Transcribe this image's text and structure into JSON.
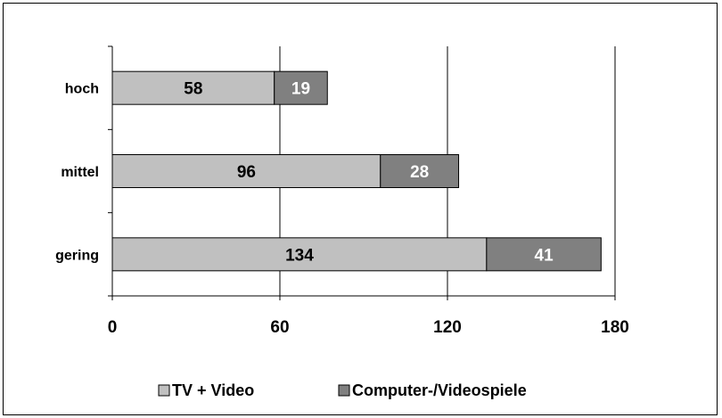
{
  "chart_data": {
    "type": "bar",
    "orientation": "horizontal",
    "stacked": true,
    "categories": [
      "hoch",
      "mittel",
      "gering"
    ],
    "series": [
      {
        "name": "TV + Video",
        "values": [
          58,
          96,
          134
        ],
        "color": "#c0c0c0",
        "label_color": "#000000"
      },
      {
        "name": "Computer-/Videospiele",
        "values": [
          19,
          28,
          41
        ],
        "color": "#808080",
        "label_color": "#ffffff"
      }
    ],
    "xlim": [
      0,
      180
    ],
    "xticks": [
      0,
      60,
      120,
      180
    ],
    "grid": "vertical",
    "legend_position": "bottom"
  }
}
